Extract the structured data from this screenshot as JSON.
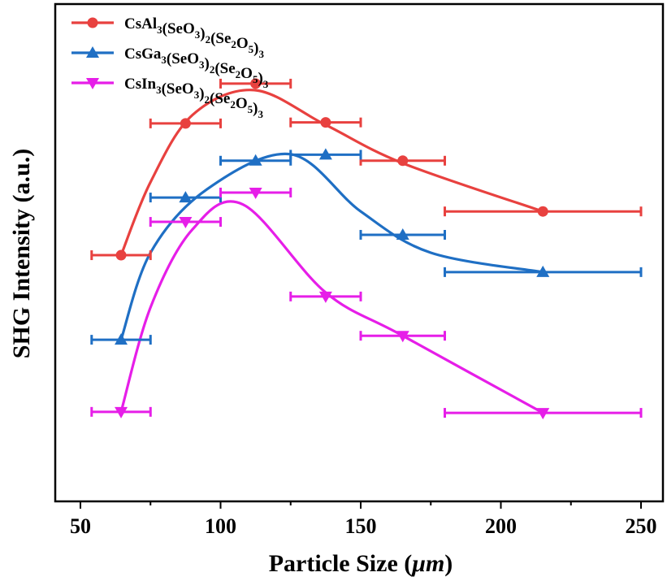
{
  "chart_data": {
    "type": "scatter",
    "title": "",
    "xlabel": "Particle Size (",
    "xlabel_unit": "μm",
    "xlabel_close": ")",
    "ylabel": "SHG Intensity (a.u.)",
    "xlim": [
      40,
      260
    ],
    "ylim": [
      0,
      1
    ],
    "grid": false,
    "legend_position": "top-left",
    "x_ticks": [
      50,
      100,
      150,
      200,
      250
    ],
    "x_tick_labels": [
      "50",
      "100",
      "150",
      "200",
      "250"
    ],
    "series": [
      {
        "name": "CsAl3(SeO3)2(Se2O5)3",
        "legend_parts": [
          [
            "CsAl",
            ""
          ],
          [
            "3",
            "sub"
          ],
          [
            "(SeO",
            ""
          ],
          [
            "3",
            "sub"
          ],
          [
            ")",
            ""
          ],
          [
            "2",
            "sub"
          ],
          [
            "(Se",
            ""
          ],
          [
            "2",
            "sub"
          ],
          [
            "O",
            ""
          ],
          [
            "5",
            "sub"
          ],
          [
            ")",
            ""
          ],
          [
            "3",
            "sub"
          ]
        ],
        "color": "#e8413f",
        "marker": "circle",
        "x": [
          64.5,
          87.5,
          112.5,
          137.5,
          165,
          215
        ],
        "y": [
          0.495,
          0.76,
          0.84,
          0.762,
          0.685,
          0.583
        ],
        "x_err_low": [
          54,
          75,
          100,
          125,
          150,
          180
        ],
        "x_err_high": [
          75,
          100,
          125,
          150,
          180,
          250
        ]
      },
      {
        "name": "CsGa3(SeO3)2(Se2O5)3",
        "legend_parts": [
          [
            "CsGa",
            ""
          ],
          [
            "3",
            "sub"
          ],
          [
            "(SeO",
            ""
          ],
          [
            "3",
            "sub"
          ],
          [
            ")",
            ""
          ],
          [
            "2",
            "sub"
          ],
          [
            "(Se",
            ""
          ],
          [
            "2",
            "sub"
          ],
          [
            "O",
            ""
          ],
          [
            "5",
            "sub"
          ],
          [
            ")",
            ""
          ],
          [
            "3",
            "sub"
          ]
        ],
        "color": "#1f6fc4",
        "marker": "triangle-up",
        "x": [
          64.5,
          87.5,
          112.5,
          137.5,
          165,
          215
        ],
        "y": [
          0.325,
          0.611,
          0.685,
          0.697,
          0.536,
          0.461
        ],
        "x_err_low": [
          54,
          75,
          100,
          125,
          150,
          180
        ],
        "x_err_high": [
          75,
          100,
          125,
          150,
          180,
          250
        ]
      },
      {
        "name": "CsIn3(SeO3)2(Se2O5)3",
        "legend_parts": [
          [
            "CsIn",
            ""
          ],
          [
            "3",
            "sub"
          ],
          [
            "(SeO",
            ""
          ],
          [
            "3",
            "sub"
          ],
          [
            ")",
            ""
          ],
          [
            "2",
            "sub"
          ],
          [
            "(Se",
            ""
          ],
          [
            "2",
            "sub"
          ],
          [
            "O",
            ""
          ],
          [
            "5",
            "sub"
          ],
          [
            ")",
            ""
          ],
          [
            "3",
            "sub"
          ]
        ],
        "color": "#e61ee8",
        "marker": "triangle-down",
        "x": [
          64.5,
          87.5,
          112.5,
          137.5,
          165,
          215
        ],
        "y": [
          0.18,
          0.562,
          0.621,
          0.412,
          0.333,
          0.178
        ],
        "x_err_low": [
          54,
          75,
          100,
          125,
          150,
          180
        ],
        "x_err_high": [
          75,
          100,
          125,
          150,
          180,
          250
        ]
      }
    ],
    "fits": [
      {
        "series": "CsAl3(SeO3)2(Se2O5)3",
        "x": [
          64.5,
          75,
          90,
          112,
          137.5,
          165,
          215
        ],
        "y": [
          0.495,
          0.642,
          0.777,
          0.827,
          0.757,
          0.68,
          0.583
        ]
      },
      {
        "series": "CsGa3(SeO3)2(Se2O5)3",
        "x": [
          64.5,
          75,
          95,
          125,
          150,
          175,
          215
        ],
        "y": [
          0.325,
          0.5,
          0.627,
          0.698,
          0.583,
          0.5,
          0.461
        ]
      },
      {
        "series": "CsIn3(SeO3)2(Se2O5)3",
        "x": [
          64.5,
          75,
          90,
          108,
          137.5,
          165,
          215
        ],
        "y": [
          0.18,
          0.39,
          0.547,
          0.597,
          0.42,
          0.333,
          0.178
        ]
      }
    ]
  }
}
